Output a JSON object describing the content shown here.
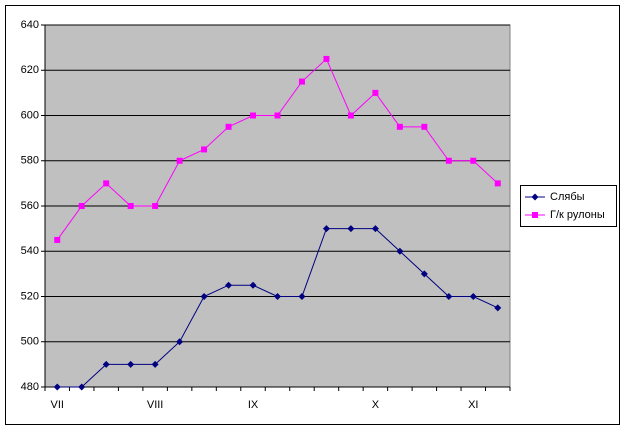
{
  "chart_data": {
    "type": "line",
    "categories": [
      "VII",
      null,
      null,
      null,
      "VIII",
      null,
      null,
      null,
      "IX",
      null,
      null,
      null,
      null,
      "X",
      null,
      null,
      null,
      "XI",
      null
    ],
    "series": [
      {
        "name": "Слябы",
        "color": "#000080",
        "marker": "diamond",
        "values": [
          480,
          480,
          490,
          490,
          490,
          500,
          520,
          525,
          525,
          520,
          520,
          550,
          550,
          550,
          540,
          530,
          520,
          520,
          515
        ]
      },
      {
        "name": "Г/к рулоны",
        "color": "#ff00ff",
        "marker": "square",
        "values": [
          545,
          560,
          570,
          560,
          560,
          580,
          585,
          595,
          600,
          600,
          615,
          625,
          600,
          610,
          595,
          595,
          580,
          580,
          570
        ]
      }
    ],
    "ylim": [
      480,
      640
    ],
    "yticks": [
      480,
      500,
      520,
      540,
      560,
      580,
      600,
      620,
      640
    ],
    "grid": true,
    "legend": "right"
  }
}
